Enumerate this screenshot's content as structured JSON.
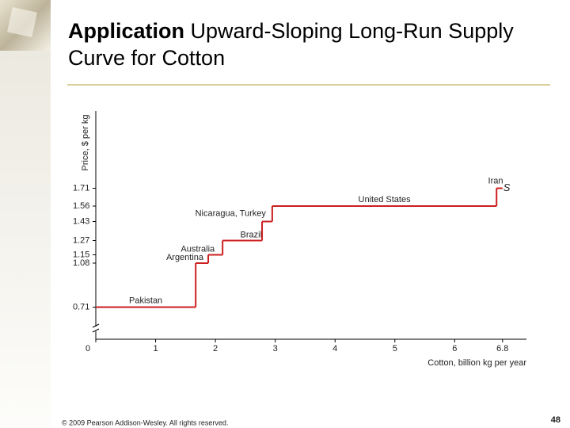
{
  "header": {
    "title_bold": "Application",
    "title_rest": "Upward-Sloping Long-Run Supply Curve for Cotton"
  },
  "chart_data": {
    "type": "step",
    "ylabel": "Price, $ per kg",
    "xlabel": "Cotton, billion kg per year",
    "curve_label": "S",
    "xlim": [
      0,
      7.2
    ],
    "xticks": [
      0,
      1,
      2,
      3,
      4,
      5,
      6,
      6.8
    ],
    "ylim": [
      0.44,
      2.36
    ],
    "yticks": [
      0.71,
      1.08,
      1.15,
      1.27,
      1.43,
      1.56,
      1.71
    ],
    "y_axis_break": true,
    "color": "#cc1f1f",
    "steps": [
      {
        "name": "Pakistan",
        "price": 0.71,
        "from": 0,
        "to": 1.67
      },
      {
        "name": "Argentina",
        "price": 1.08,
        "from": 1.67,
        "to": 1.88
      },
      {
        "name": "Australia",
        "price": 1.15,
        "from": 1.88,
        "to": 2.12
      },
      {
        "name": "Brazil",
        "price": 1.27,
        "from": 2.12,
        "to": 2.78
      },
      {
        "name": "Nicaragua, Turkey",
        "price": 1.43,
        "from": 2.78,
        "to": 2.95
      },
      {
        "name": "United States",
        "price": 1.56,
        "from": 2.95,
        "to": 6.7
      },
      {
        "name": "Iran",
        "price": 1.71,
        "from": 6.7,
        "to": 6.8
      }
    ]
  },
  "footer": {
    "copyright": "© 2009 Pearson Addison-Wesley. All rights reserved.",
    "page": "48"
  }
}
